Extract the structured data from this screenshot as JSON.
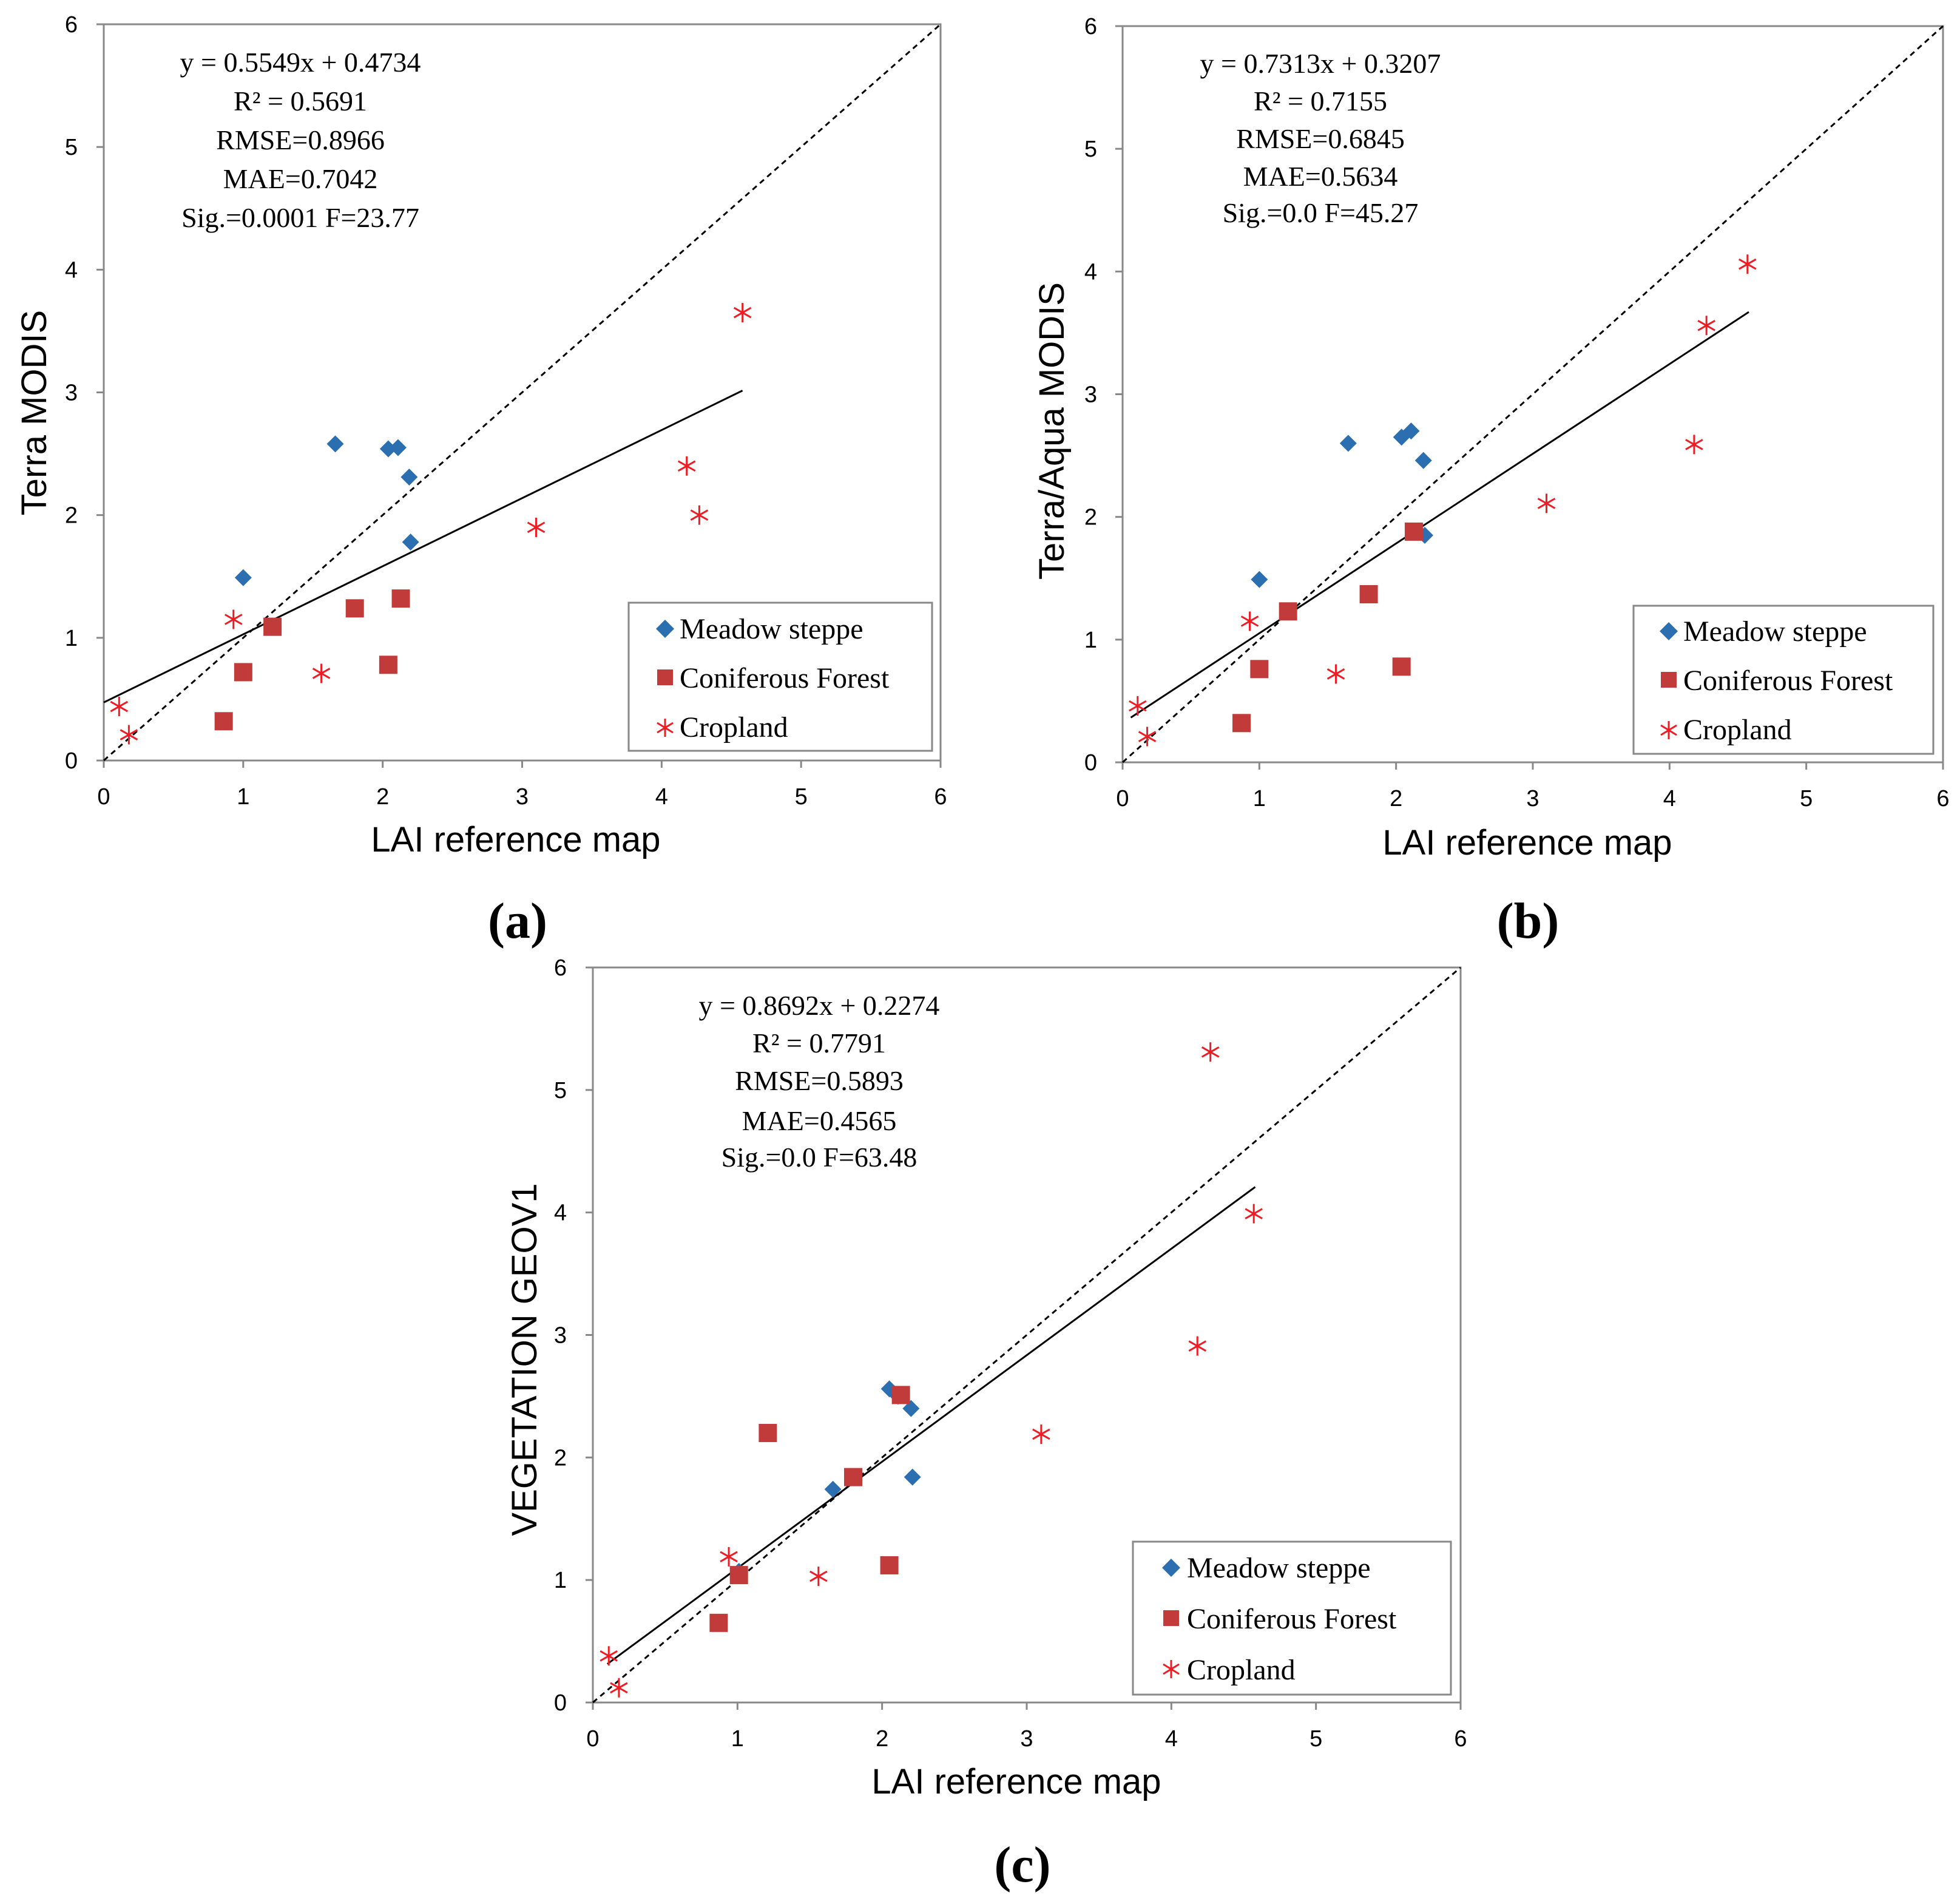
{
  "colors": {
    "meadow": "#2b6fb0",
    "conifer": "#c23b3b",
    "cropland": "#ee1c24",
    "fit_line": "#000000",
    "identity_line": "#000000"
  },
  "legend": {
    "meadow": "Meadow steppe",
    "conifer": "Coniferous Forest",
    "cropland": "Cropland"
  },
  "chart_data": [
    {
      "id": "a",
      "type": "scatter",
      "panel_label": "(a)",
      "xlabel": "LAI reference map",
      "ylabel": "Terra MODIS",
      "xlim": [
        0,
        6
      ],
      "ylim": [
        0,
        6
      ],
      "xticks": [
        "0",
        "1",
        "2",
        "3",
        "4",
        "5",
        "6"
      ],
      "yticks": [
        "0",
        "1",
        "2",
        "3",
        "4",
        "5",
        "6"
      ],
      "stats": [
        "y = 0.5549x + 0.4734",
        "R² = 0.5691",
        "RMSE=0.8966",
        "MAE=0.7042",
        "Sig.=0.0001  F=23.77"
      ],
      "fit": {
        "slope": 0.5549,
        "intercept": 0.4734,
        "x_range": [
          0,
          4.58
        ]
      },
      "identity_line": true,
      "series": [
        {
          "name": "Meadow steppe",
          "marker": "diamond",
          "points": [
            [
              1.0,
              1.49
            ],
            [
              1.66,
              2.58
            ],
            [
              2.04,
              2.54
            ],
            [
              2.11,
              2.55
            ],
            [
              2.19,
              2.31
            ],
            [
              2.2,
              1.78
            ]
          ]
        },
        {
          "name": "Coniferous Forest",
          "marker": "square",
          "points": [
            [
              0.86,
              0.32
            ],
            [
              1.0,
              0.72
            ],
            [
              1.21,
              1.09
            ],
            [
              1.8,
              1.24
            ],
            [
              2.04,
              0.78
            ],
            [
              2.13,
              1.32
            ]
          ]
        },
        {
          "name": "Cropland",
          "marker": "asterisk",
          "points": [
            [
              0.11,
              0.44
            ],
            [
              0.18,
              0.21
            ],
            [
              0.93,
              1.15
            ],
            [
              1.56,
              0.71
            ],
            [
              3.1,
              1.9
            ],
            [
              4.18,
              2.4
            ],
            [
              4.27,
              2.0
            ],
            [
              4.58,
              3.65
            ]
          ]
        }
      ]
    },
    {
      "id": "b",
      "type": "scatter",
      "panel_label": "(b)",
      "xlabel": "LAI reference map",
      "ylabel": "Terra/Aqua MODIS",
      "xlim": [
        0,
        6
      ],
      "ylim": [
        0,
        6
      ],
      "xticks": [
        "0",
        "1",
        "2",
        "3",
        "4",
        "5",
        "6"
      ],
      "yticks": [
        "0",
        "1",
        "2",
        "3",
        "4",
        "5",
        "6"
      ],
      "stats": [
        "y = 0.7313x + 0.3207",
        "R² = 0.7155",
        "RMSE=0.6845",
        "MAE=0.5634",
        "Sig.=0.0  F=45.27"
      ],
      "fit": {
        "slope": 0.7313,
        "intercept": 0.3207,
        "x_range": [
          0.06,
          4.58
        ]
      },
      "identity_line": true,
      "series": [
        {
          "name": "Meadow steppe",
          "marker": "diamond",
          "points": [
            [
              1.0,
              1.49
            ],
            [
              1.65,
              2.6
            ],
            [
              2.04,
              2.65
            ],
            [
              2.11,
              2.7
            ],
            [
              2.2,
              2.46
            ],
            [
              2.21,
              1.85
            ]
          ]
        },
        {
          "name": "Coniferous Forest",
          "marker": "square",
          "points": [
            [
              0.87,
              0.32
            ],
            [
              1.0,
              0.76
            ],
            [
              1.21,
              1.23
            ],
            [
              1.8,
              1.37
            ],
            [
              2.04,
              0.78
            ],
            [
              2.13,
              1.88
            ]
          ]
        },
        {
          "name": "Cropland",
          "marker": "asterisk",
          "points": [
            [
              0.11,
              0.46
            ],
            [
              0.18,
              0.21
            ],
            [
              0.93,
              1.15
            ],
            [
              1.56,
              0.72
            ],
            [
              3.1,
              2.11
            ],
            [
              4.18,
              2.59
            ],
            [
              4.27,
              3.56
            ],
            [
              4.57,
              4.06
            ]
          ]
        }
      ]
    },
    {
      "id": "c",
      "type": "scatter",
      "panel_label": "(c)",
      "xlabel": "LAI reference map",
      "ylabel": "VEGETATION GEOV1",
      "xlim": [
        0,
        6
      ],
      "ylim": [
        0,
        6
      ],
      "xticks": [
        "0",
        "1",
        "2",
        "3",
        "4",
        "5",
        "6"
      ],
      "yticks": [
        "0",
        "1",
        "2",
        "3",
        "4",
        "5",
        "6"
      ],
      "stats": [
        "y = 0.8692x + 0.2274",
        "R² = 0.7791",
        "RMSE=0.5893",
        "MAE=0.4565",
        "Sig.=0.0  F=63.48"
      ],
      "fit": {
        "slope": 0.8692,
        "intercept": 0.2274,
        "x_range": [
          0.1,
          4.58
        ]
      },
      "identity_line": true,
      "series": [
        {
          "name": "Meadow steppe",
          "marker": "diamond",
          "points": [
            [
              1.01,
              1.07
            ],
            [
              1.66,
              1.74
            ],
            [
              2.05,
              2.56
            ],
            [
              2.11,
              2.5
            ],
            [
              2.2,
              2.4
            ],
            [
              2.21,
              1.84
            ]
          ]
        },
        {
          "name": "Coniferous Forest",
          "marker": "square",
          "points": [
            [
              0.87,
              0.65
            ],
            [
              1.01,
              1.04
            ],
            [
              1.21,
              2.2
            ],
            [
              1.8,
              1.84
            ],
            [
              2.05,
              1.12
            ],
            [
              2.13,
              2.51
            ]
          ]
        },
        {
          "name": "Cropland",
          "marker": "asterisk",
          "points": [
            [
              0.11,
              0.38
            ],
            [
              0.18,
              0.12
            ],
            [
              0.94,
              1.19
            ],
            [
              1.56,
              1.03
            ],
            [
              3.1,
              2.19
            ],
            [
              4.18,
              2.91
            ],
            [
              4.27,
              5.31
            ],
            [
              4.57,
              3.99
            ]
          ]
        }
      ]
    }
  ]
}
